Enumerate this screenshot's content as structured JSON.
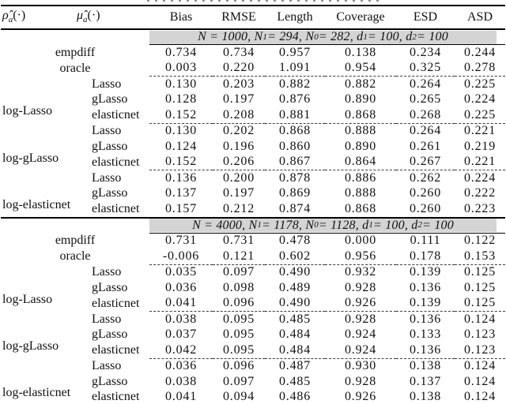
{
  "header": {
    "col1": {
      "base": "ρ̂",
      "sub": "a",
      "paren": "(·)"
    },
    "col2": {
      "base": "μ̂",
      "sub": "a",
      "paren": "(·)"
    },
    "metrics": [
      "Bias",
      "RMSE",
      "Length",
      "Coverage",
      "ESD",
      "ASD"
    ]
  },
  "sections": [
    {
      "band": {
        "p0": "N = 1000, N",
        "s0": "1",
        "p1": " = 294, N",
        "s1": "0",
        "p2": " = 282, d",
        "s2": "1",
        "p3": " = 100, d",
        "s3": "2",
        "p4": " = 100"
      },
      "singles": [
        {
          "label": "empdiff",
          "values": [
            "0.734",
            "0.734",
            "0.957",
            "0.138",
            "0.234",
            "0.244"
          ]
        },
        {
          "label": "oracle",
          "values": [
            "0.003",
            "0.220",
            "1.091",
            "0.954",
            "0.325",
            "0.278"
          ]
        }
      ],
      "groups": [
        {
          "label": "log-Lasso",
          "rows": [
            {
              "method": "Lasso",
              "values": [
                "0.130",
                "0.203",
                "0.882",
                "0.882",
                "0.264",
                "0.225"
              ]
            },
            {
              "method": "gLasso",
              "values": [
                "0.128",
                "0.197",
                "0.876",
                "0.890",
                "0.265",
                "0.224"
              ]
            },
            {
              "method": "elasticnet",
              "values": [
                "0.152",
                "0.208",
                "0.881",
                "0.868",
                "0.268",
                "0.225"
              ]
            }
          ]
        },
        {
          "label": "log-gLasso",
          "rows": [
            {
              "method": "Lasso",
              "values": [
                "0.130",
                "0.202",
                "0.868",
                "0.888",
                "0.264",
                "0.221"
              ]
            },
            {
              "method": "gLasso",
              "values": [
                "0.124",
                "0.196",
                "0.860",
                "0.890",
                "0.261",
                "0.219"
              ]
            },
            {
              "method": "elasticnet",
              "values": [
                "0.152",
                "0.206",
                "0.867",
                "0.864",
                "0.267",
                "0.221"
              ]
            }
          ]
        },
        {
          "label": "log-elasticnet",
          "rows": [
            {
              "method": "Lasso",
              "values": [
                "0.136",
                "0.200",
                "0.878",
                "0.886",
                "0.262",
                "0.224"
              ]
            },
            {
              "method": "gLasso",
              "values": [
                "0.137",
                "0.197",
                "0.869",
                "0.888",
                "0.260",
                "0.222"
              ]
            },
            {
              "method": "elasticnet",
              "values": [
                "0.157",
                "0.212",
                "0.874",
                "0.868",
                "0.260",
                "0.223"
              ]
            }
          ]
        }
      ]
    },
    {
      "band": {
        "p0": "N = 4000, N",
        "s0": "1",
        "p1": " = 1178, N",
        "s1": "0",
        "p2": " = 1128, d",
        "s2": "1",
        "p3": " = 100, d",
        "s3": "2",
        "p4": " = 100"
      },
      "singles": [
        {
          "label": "empdiff",
          "values": [
            "0.731",
            "0.731",
            "0.478",
            "0.000",
            "0.111",
            "0.122"
          ]
        },
        {
          "label": "oracle",
          "values": [
            "-0.006",
            "0.121",
            "0.602",
            "0.956",
            "0.178",
            "0.153"
          ]
        }
      ],
      "groups": [
        {
          "label": "log-Lasso",
          "rows": [
            {
              "method": "Lasso",
              "values": [
                "0.035",
                "0.097",
                "0.490",
                "0.932",
                "0.139",
                "0.125"
              ]
            },
            {
              "method": "gLasso",
              "values": [
                "0.036",
                "0.098",
                "0.489",
                "0.928",
                "0.136",
                "0.125"
              ]
            },
            {
              "method": "elasticnet",
              "values": [
                "0.041",
                "0.096",
                "0.490",
                "0.926",
                "0.139",
                "0.125"
              ]
            }
          ]
        },
        {
          "label": "log-gLasso",
          "rows": [
            {
              "method": "Lasso",
              "values": [
                "0.038",
                "0.095",
                "0.485",
                "0.928",
                "0.136",
                "0.124"
              ]
            },
            {
              "method": "gLasso",
              "values": [
                "0.037",
                "0.095",
                "0.484",
                "0.924",
                "0.133",
                "0.123"
              ]
            },
            {
              "method": "elasticnet",
              "values": [
                "0.042",
                "0.095",
                "0.484",
                "0.924",
                "0.136",
                "0.123"
              ]
            }
          ]
        },
        {
          "label": "log-elasticnet",
          "rows": [
            {
              "method": "Lasso",
              "values": [
                "0.036",
                "0.096",
                "0.487",
                "0.930",
                "0.138",
                "0.124"
              ]
            },
            {
              "method": "gLasso",
              "values": [
                "0.038",
                "0.097",
                "0.485",
                "0.928",
                "0.137",
                "0.124"
              ]
            },
            {
              "method": "elasticnet",
              "values": [
                "0.041",
                "0.094",
                "0.486",
                "0.926",
                "0.138",
                "0.124"
              ]
            }
          ]
        }
      ]
    }
  ]
}
